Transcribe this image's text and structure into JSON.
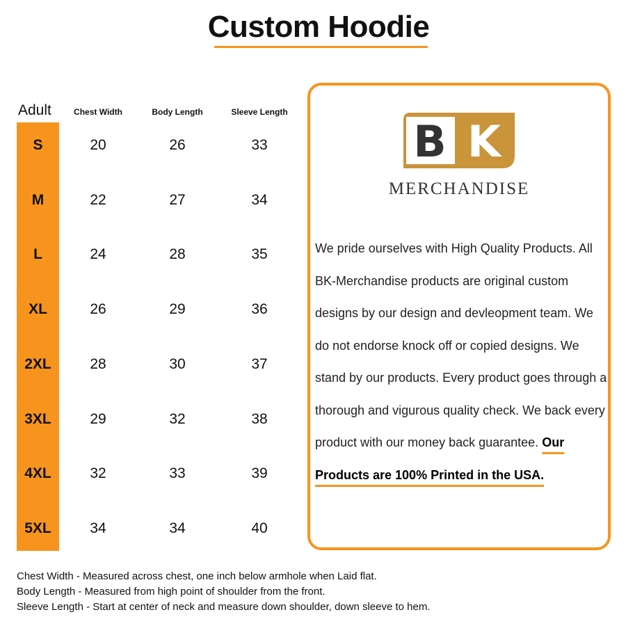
{
  "title": "Custom Hoodie",
  "table": {
    "corner": "Adult",
    "headers": [
      "Chest Width",
      "Body Length",
      "Sleeve Length"
    ],
    "rows": [
      {
        "size": "S",
        "values": [
          "20",
          "26",
          "33"
        ]
      },
      {
        "size": "M",
        "values": [
          "22",
          "27",
          "34"
        ]
      },
      {
        "size": "L",
        "values": [
          "24",
          "28",
          "35"
        ]
      },
      {
        "size": "XL",
        "values": [
          "26",
          "29",
          "36"
        ]
      },
      {
        "size": "2XL",
        "values": [
          "28",
          "30",
          "37"
        ]
      },
      {
        "size": "3XL",
        "values": [
          "29",
          "32",
          "38"
        ]
      },
      {
        "size": "4XL",
        "values": [
          "32",
          "33",
          "39"
        ]
      },
      {
        "size": "5XL",
        "values": [
          "34",
          "34",
          "40"
        ]
      }
    ]
  },
  "brand": {
    "logo_letters": "BK",
    "name": "MERCHANDISE",
    "colors": {
      "gold": "#c9943a",
      "dark": "#333333"
    }
  },
  "about": {
    "text": "We pride ourselves with High Quality Products. All BK-Merchandise products are original custom designs by our design and devleopment team. We do not endorse knock off or copied designs. We stand by our products. Every product goes through a thorough and vigurous quality check. We back every product with our money back guarantee. ",
    "emphasis": "Our Products are 100% Printed in the USA."
  },
  "notes": [
    "Chest Width - Measured across chest, one inch below armhole when Laid flat.",
    "Body Length - Measured from high point of shoulder from the front.",
    "Sleeve Length - Start at center of neck and measure down shoulder, down sleeve to hem."
  ],
  "accent": "#f7941d"
}
